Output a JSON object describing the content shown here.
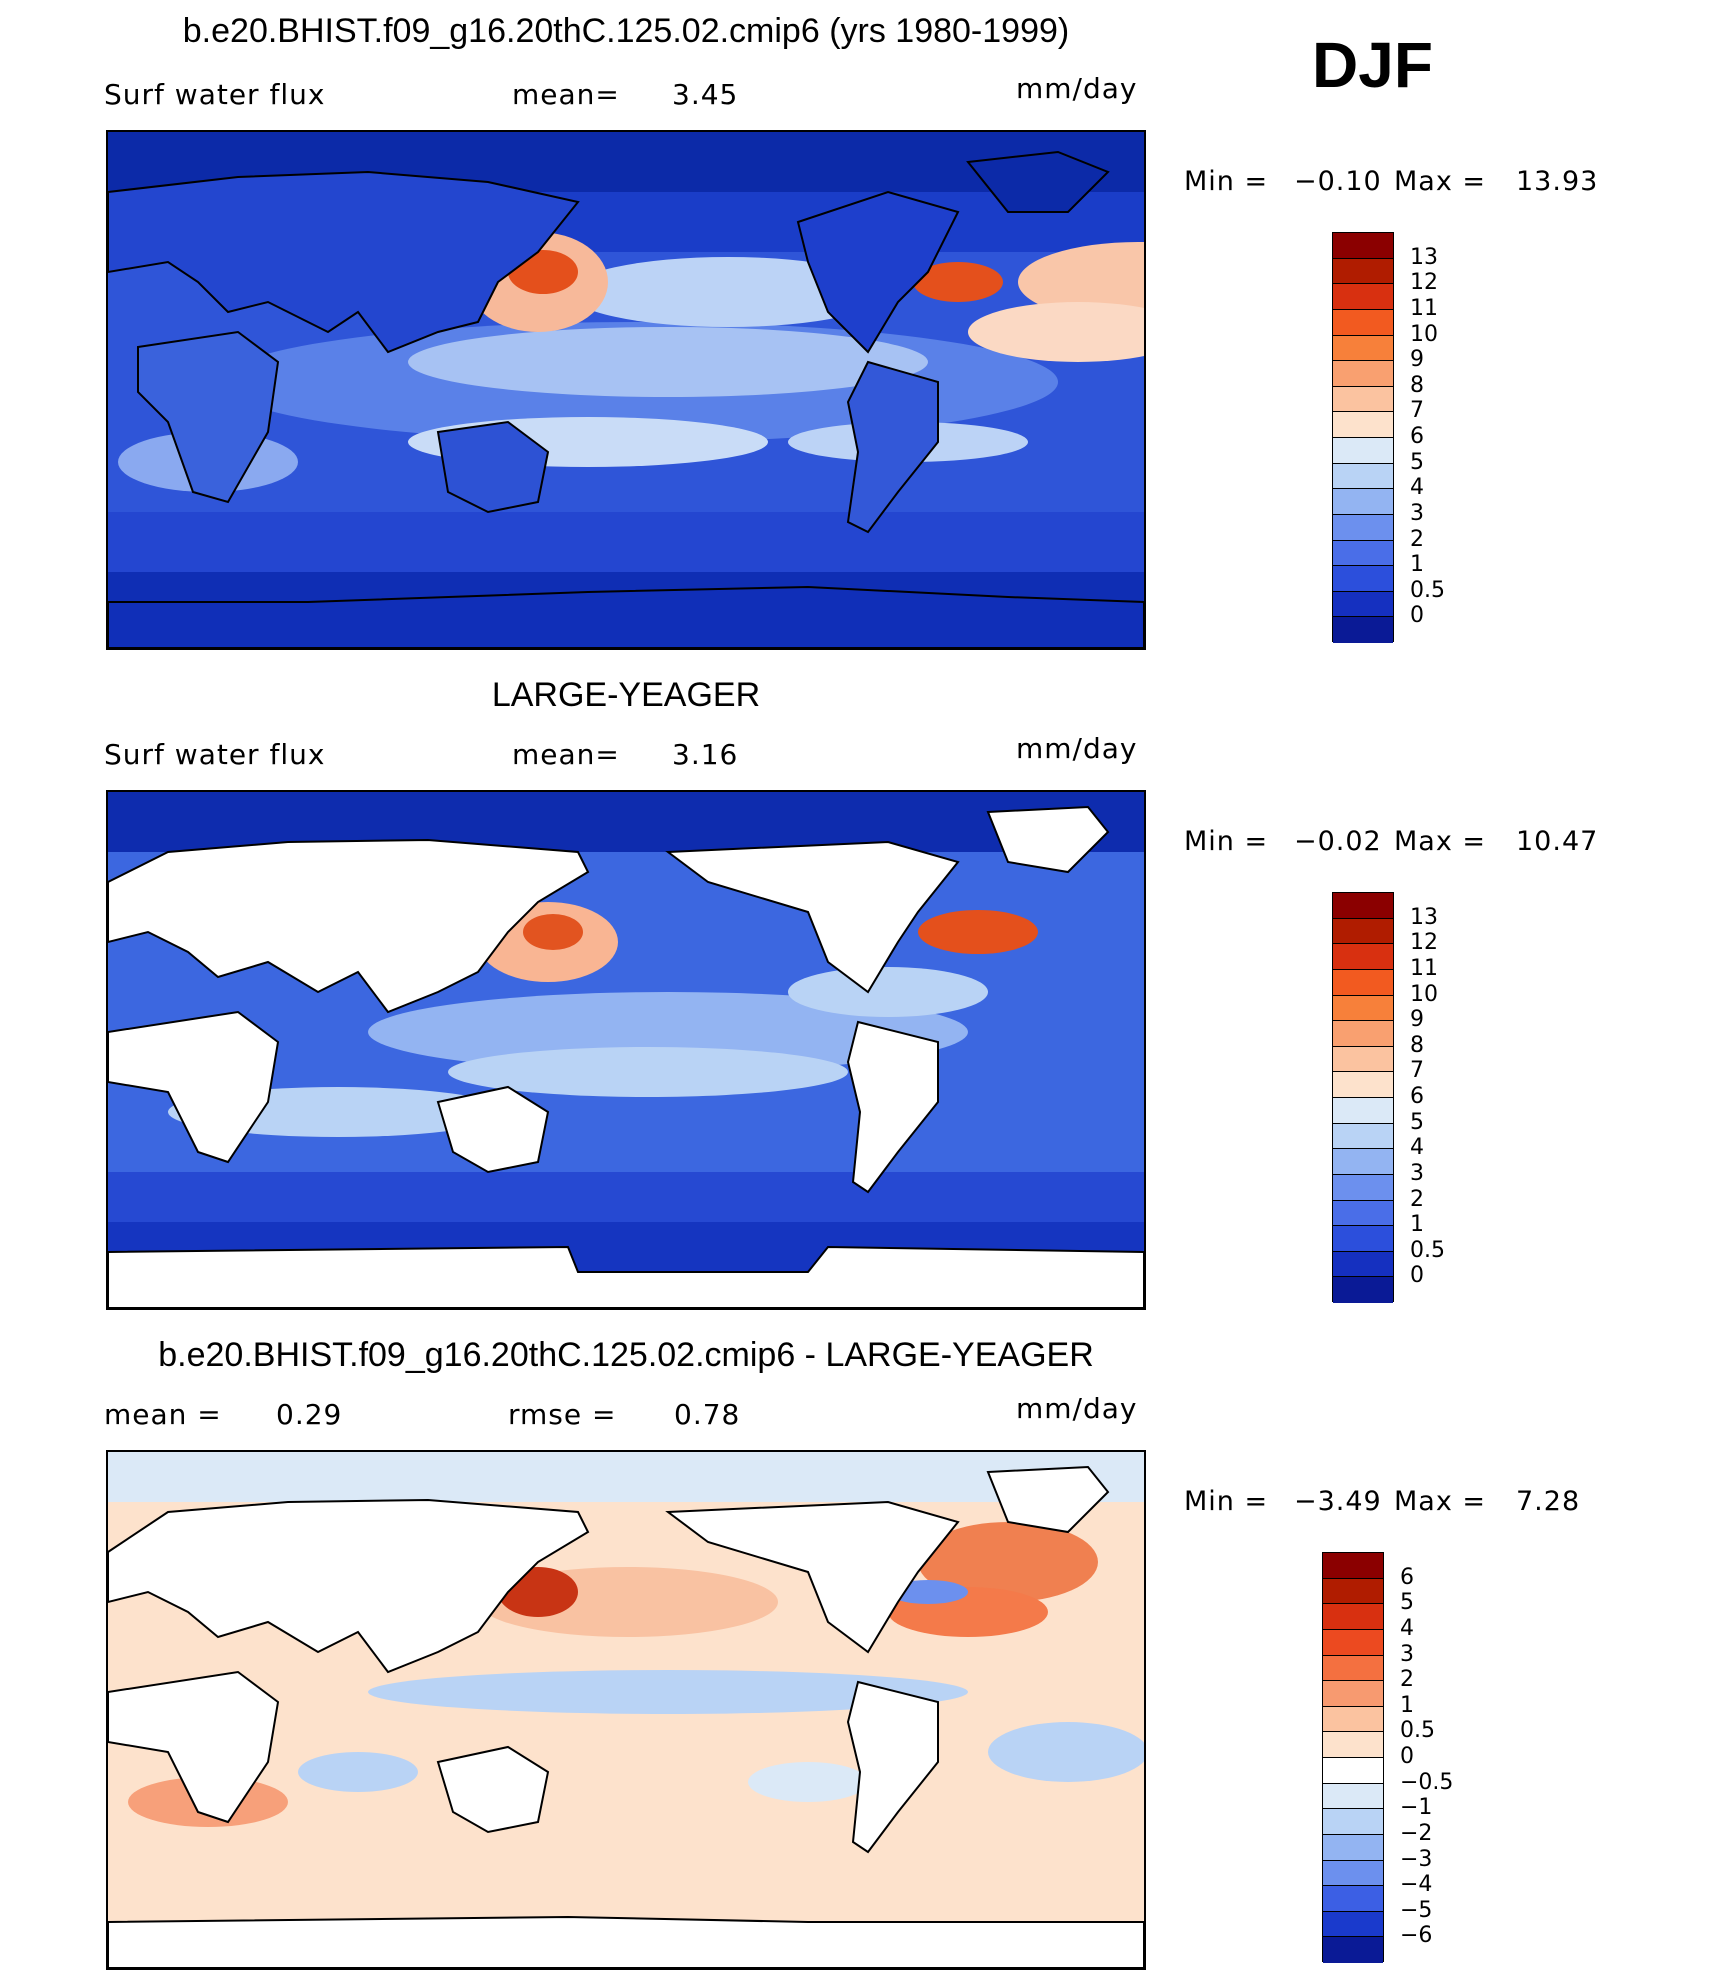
{
  "season": "DJF",
  "panels": [
    {
      "title": "b.e20.BHIST.f09_g16.20thC.125.02.cmip6 (yrs 1980-1999)",
      "left_label": "Surf water flux",
      "center_label": "mean=",
      "center_value": "3.45",
      "units": "mm/day",
      "minmax": {
        "min_label": "Min =",
        "min": "−0.10",
        "max_label": "Max =",
        "max": "13.93"
      },
      "colorbar": {
        "labels": [
          "13",
          "12",
          "11",
          "10",
          "9",
          "8",
          "7",
          "6",
          "5",
          "4",
          "3",
          "2",
          "1",
          "0.5",
          "0"
        ],
        "colors": [
          "#8b0000",
          "#b01c00",
          "#d83010",
          "#f25a20",
          "#f7803a",
          "#f9a070",
          "#fbc3a0",
          "#fde2cc",
          "#dbe9f7",
          "#b9d3f5",
          "#93b4f2",
          "#6c90ee",
          "#4a6ee8",
          "#2c4fdc",
          "#1530c0",
          "#0a1a96"
        ]
      },
      "map": {
        "ocean": "#3c67e0",
        "land": "#2d52d4",
        "type": "absolute"
      }
    },
    {
      "title": "LARGE-YEAGER",
      "left_label": "Surf water flux",
      "center_label": "mean=",
      "center_value": "3.16",
      "units": "mm/day",
      "minmax": {
        "min_label": "Min =",
        "min": "−0.02",
        "max_label": "Max =",
        "max": "10.47"
      },
      "colorbar": {
        "labels": [
          "13",
          "12",
          "11",
          "10",
          "9",
          "8",
          "7",
          "6",
          "5",
          "4",
          "3",
          "2",
          "1",
          "0.5",
          "0"
        ],
        "colors": [
          "#8b0000",
          "#b01c00",
          "#d83010",
          "#f25a20",
          "#f7803a",
          "#f9a070",
          "#fbc3a0",
          "#fde2cc",
          "#dbe9f7",
          "#b9d3f5",
          "#93b4f2",
          "#6c90ee",
          "#4a6ee8",
          "#2c4fdc",
          "#1530c0",
          "#0a1a96"
        ]
      },
      "map": {
        "ocean": "#3c67e0",
        "land": "#ffffff",
        "type": "absolute"
      }
    },
    {
      "title": "b.e20.BHIST.f09_g16.20thC.125.02.cmip6 - LARGE-YEAGER",
      "left_label": "mean =",
      "left_value": "0.29",
      "center_label": "rmse =",
      "center_value": "0.78",
      "units": "mm/day",
      "minmax": {
        "min_label": "Min =",
        "min": "−3.49",
        "max_label": "Max =",
        "max": "7.28"
      },
      "colorbar": {
        "labels": [
          "6",
          "5",
          "4",
          "3",
          "2",
          "1",
          "0.5",
          "0",
          "−0.5",
          "−1",
          "−2",
          "−3",
          "−4",
          "−5",
          "−6"
        ],
        "colors": [
          "#8b0000",
          "#b01c00",
          "#d83010",
          "#ec4a20",
          "#f47040",
          "#f79a70",
          "#fbc3a0",
          "#fde2cc",
          "#ffffff",
          "#dbe9f7",
          "#b9d3f5",
          "#93b4f2",
          "#6c90ee",
          "#3c5fe4",
          "#1a3acc",
          "#0a1a96"
        ]
      },
      "map": {
        "ocean": "#fbd9c4",
        "land": "#ffffff",
        "type": "difference"
      }
    }
  ]
}
